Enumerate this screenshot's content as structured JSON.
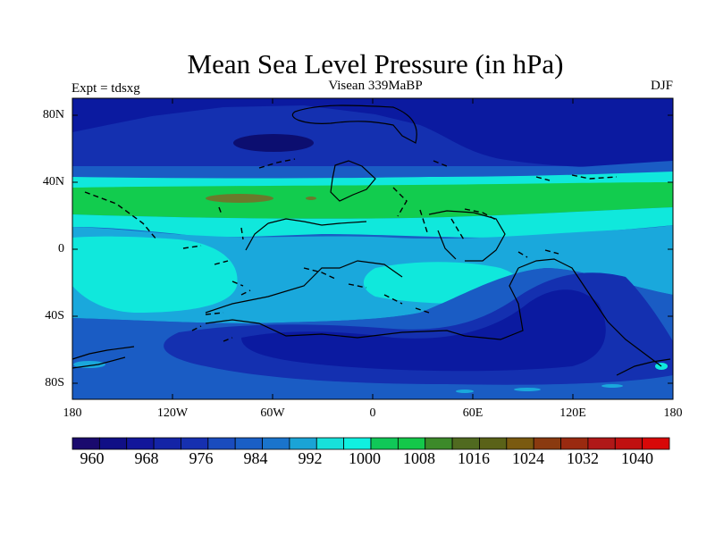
{
  "title": "Mean Sea Level Pressure (in hPa)",
  "experiment_label": "Expt = tdsxg",
  "period_label": "Visean 339MaBP",
  "season_label": "DJF",
  "lat_ticks": [
    "80N",
    "40N",
    "0",
    "40S",
    "80S"
  ],
  "lon_ticks": [
    "180",
    "120W",
    "60W",
    "0",
    "60E",
    "120E",
    "180"
  ],
  "colorbar": {
    "labels": [
      "960",
      "968",
      "976",
      "984",
      "992",
      "1000",
      "1008",
      "1016",
      "1024",
      "1032",
      "1040"
    ],
    "colors": [
      "#1a0a6e",
      "#100f86",
      "#12169a",
      "#1424a6",
      "#1630b0",
      "#1a4cbe",
      "#1a5fc6",
      "#1a74cc",
      "#1aa4d6",
      "#17e0da",
      "#10f0e0",
      "#10c858",
      "#14c84a",
      "#3c8a2a",
      "#506a20",
      "#5a6218",
      "#7a5a10",
      "#8a3a10",
      "#9a2a10",
      "#b01818",
      "#c01010",
      "#d80808"
    ]
  },
  "palette": {
    "deep_blue": "#0b1aa0",
    "dark_blue": "#1430b0",
    "mid_blue": "#1a5cc4",
    "light_blue": "#1aa8dc",
    "cyan": "#10e8dc",
    "green": "#12cc4e",
    "olive": "#6a7a2c",
    "darkest": "#0c0e70"
  }
}
